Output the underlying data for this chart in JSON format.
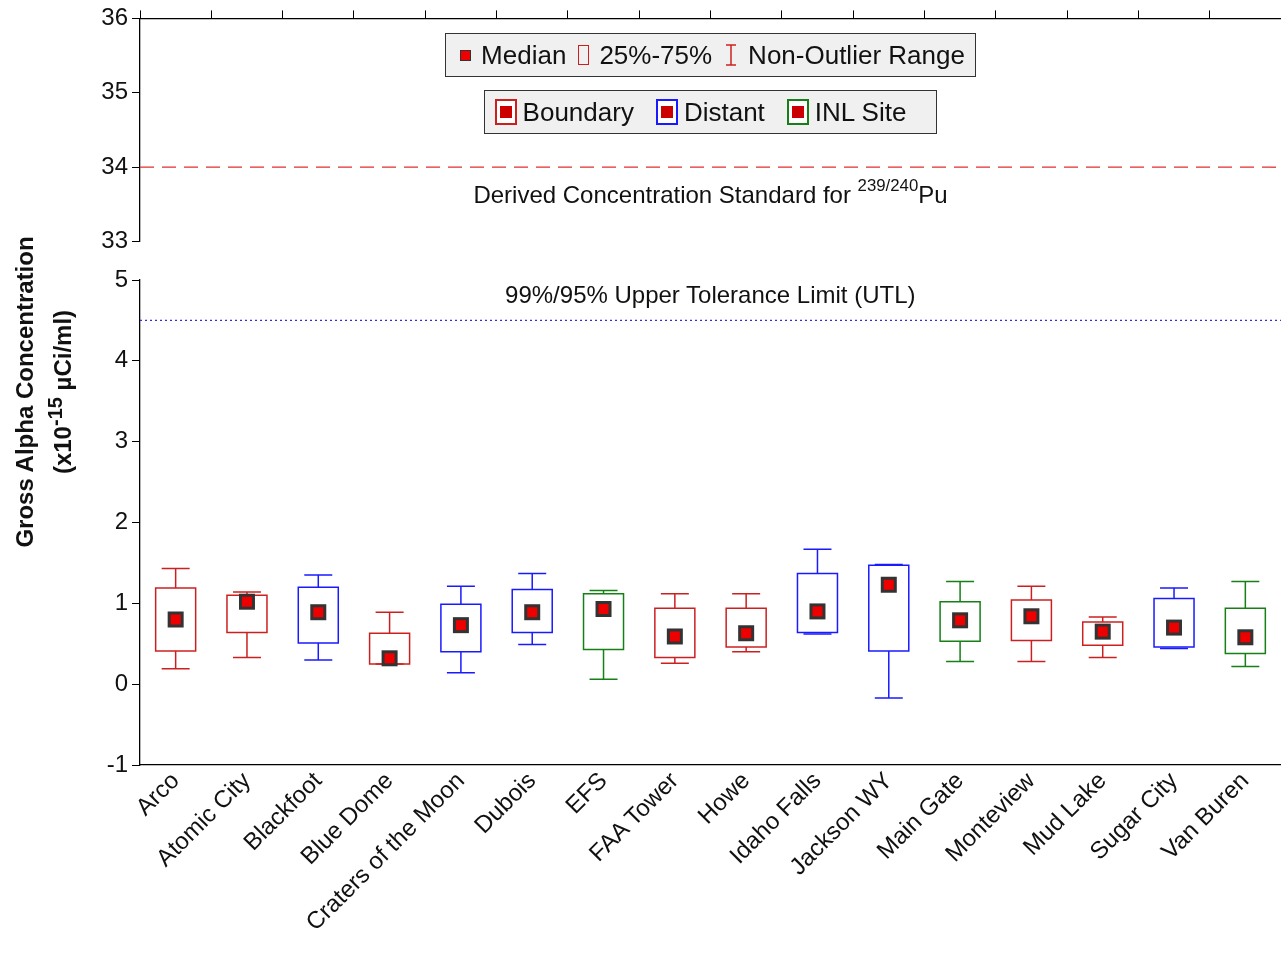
{
  "chart_data": [
    {
      "type": "box",
      "categories": [
        null,
        null,
        null,
        null,
        null,
        null,
        null,
        null,
        null,
        null,
        null,
        null,
        null,
        null,
        null,
        null
      ],
      "ylim": [
        33,
        36
      ],
      "yticks": [
        33,
        34,
        35,
        36
      ],
      "tick_labels": "y",
      "ref_lines": [
        {
          "axis": "y",
          "value": 34,
          "label": "Derived Concentration Standard for $^{239/240}$Pu",
          "color": "#e03030",
          "line_style": "dashed"
        }
      ]
    },
    {
      "type": "box",
      "ylabel": "Gross Alpha Concentration\n(x10$^{-15}$ µCi/ml)",
      "categories": [
        "Arco",
        "Atomic City",
        "Blackfoot",
        "Blue Dome",
        "Craters of the Moon",
        "Dubois",
        "EFS",
        "FAA Tower",
        "Howe",
        "Idaho Falls",
        "Jackson WY",
        "Main Gate",
        "Monteview",
        "Mud Lake",
        "Sugar City",
        "Van Buren"
      ],
      "ylim": [
        -1,
        5
      ],
      "yticks": [
        -1,
        0,
        1,
        2,
        3,
        4,
        5
      ],
      "legend": "top",
      "marker": "square",
      "annotations": [
        "Median",
        "25%-75%",
        "Non-Outlier Range"
      ],
      "ref_lines": [
        {
          "axis": "y",
          "value": 4.5,
          "label": "99%/95% Upper Tolerance Limit (UTL)",
          "color": "#3030e0",
          "line_style": "dotted"
        }
      ],
      "series": [
        {
          "name": "Boundary",
          "color": "#cc2020",
          "boxes": [
            {
              "low": 0.19,
              "q1": 0.41,
              "median": 0.8,
              "q3": 1.19,
              "high": 1.43
            },
            {
              "low": 0.33,
              "q1": 0.64,
              "median": 1.02,
              "q3": 1.1,
              "high": 1.14
            },
            null,
            {
              "low": 0.25,
              "q1": 0.25,
              "median": 0.32,
              "q3": 0.63,
              "high": 0.89
            },
            null,
            null,
            null,
            {
              "low": 0.26,
              "q1": 0.33,
              "median": 0.59,
              "q3": 0.94,
              "high": 1.12
            },
            {
              "low": 0.4,
              "q1": 0.46,
              "median": 0.63,
              "q3": 0.94,
              "high": 1.12
            },
            null,
            null,
            null,
            {
              "low": 0.28,
              "q1": 0.54,
              "median": 0.84,
              "q3": 1.04,
              "high": 1.21
            },
            {
              "low": 0.33,
              "q1": 0.48,
              "median": 0.65,
              "q3": 0.77,
              "high": 0.83
            },
            null,
            null
          ]
        },
        {
          "name": "Distant",
          "color": "#1a1aff",
          "boxes": [
            null,
            null,
            {
              "low": 0.3,
              "q1": 0.51,
              "median": 0.89,
              "q3": 1.2,
              "high": 1.35
            },
            null,
            {
              "low": 0.14,
              "q1": 0.4,
              "median": 0.73,
              "q3": 0.99,
              "high": 1.21
            },
            {
              "low": 0.49,
              "q1": 0.64,
              "median": 0.89,
              "q3": 1.17,
              "high": 1.37
            },
            null,
            null,
            null,
            {
              "low": 0.62,
              "q1": 0.64,
              "median": 0.9,
              "q3": 1.37,
              "high": 1.67
            },
            {
              "low": -0.17,
              "q1": 0.41,
              "median": 1.23,
              "q3": 1.47,
              "high": 1.48
            },
            null,
            null,
            null,
            {
              "low": 0.44,
              "q1": 0.46,
              "median": 0.7,
              "q3": 1.06,
              "high": 1.19
            },
            null
          ]
        },
        {
          "name": "INL Site",
          "color": "#168016",
          "boxes": [
            null,
            null,
            null,
            null,
            null,
            null,
            {
              "low": 0.06,
              "q1": 0.43,
              "median": 0.93,
              "q3": 1.12,
              "high": 1.16
            },
            null,
            null,
            null,
            null,
            {
              "low": 0.28,
              "q1": 0.53,
              "median": 0.79,
              "q3": 1.02,
              "high": 1.27
            },
            null,
            null,
            null,
            {
              "low": 0.22,
              "q1": 0.38,
              "median": 0.58,
              "q3": 0.94,
              "high": 1.27
            }
          ]
        }
      ]
    }
  ]
}
